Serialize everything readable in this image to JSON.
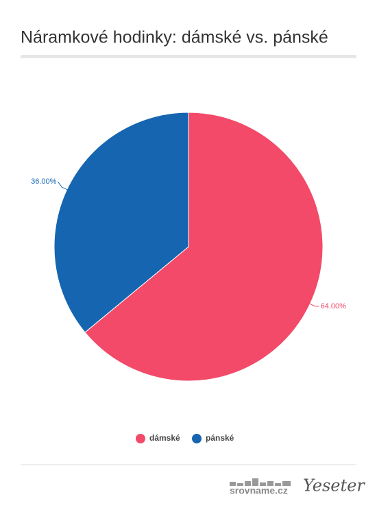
{
  "chart_data": {
    "type": "pie",
    "title": "Náramkové hodinky: dámské vs. pánské",
    "categories": [
      "dámské",
      "pánské"
    ],
    "values": [
      64,
      36
    ],
    "value_labels": [
      "64.00%",
      "36.00%"
    ],
    "colors": [
      "#f24a68",
      "#1565b0"
    ],
    "legend": "bottom"
  },
  "footer": {
    "logos": [
      "srovname.cz",
      "Yeseter"
    ]
  }
}
